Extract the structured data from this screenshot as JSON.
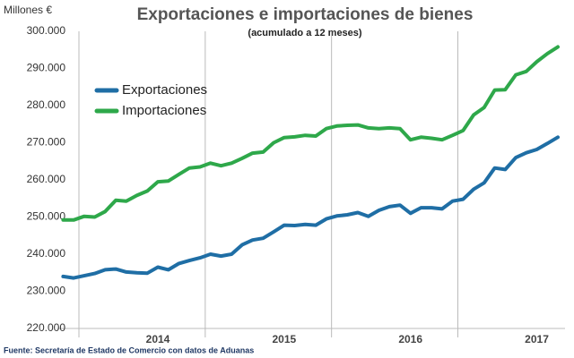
{
  "chart_data": {
    "type": "line",
    "title": "Exportaciones e importaciones de bienes",
    "subtitle": "(acumulado a 12 meses)",
    "y_axis_label": "Millones €",
    "source": "Fuente: Secretaría de Estado de Comercio con datos de Aduanas",
    "categories": [
      null,
      null,
      null,
      null,
      null,
      null,
      null,
      null,
      "2014",
      null,
      null,
      null,
      null,
      null,
      null,
      null,
      null,
      null,
      null,
      null,
      "2015",
      null,
      null,
      null,
      null,
      null,
      null,
      null,
      null,
      null,
      null,
      null,
      "2016",
      null,
      null,
      null,
      null,
      null,
      null,
      null,
      null,
      null,
      null,
      null,
      "2017",
      null,
      null,
      null
    ],
    "series": [
      {
        "name": "Exportaciones",
        "color": "#1f6ea5",
        "values": [
          234000,
          233600,
          234200,
          234800,
          235800,
          236000,
          235200,
          235000,
          234900,
          236500,
          235800,
          237500,
          238300,
          239000,
          240000,
          239500,
          240000,
          242500,
          243800,
          244300,
          246000,
          247800,
          247700,
          248000,
          247800,
          249500,
          250300,
          250600,
          251200,
          250200,
          251800,
          252800,
          253200,
          251000,
          252500,
          252500,
          252200,
          254300,
          254800,
          257500,
          259200,
          263200,
          262800,
          266000,
          267300,
          268200,
          269800,
          271500
        ]
      },
      {
        "name": "Importaciones",
        "color": "#2ea84a",
        "values": [
          249200,
          249200,
          250200,
          250000,
          251500,
          254500,
          254300,
          255800,
          257000,
          259500,
          259700,
          261500,
          263200,
          263500,
          264500,
          263800,
          264500,
          265800,
          267200,
          267500,
          270000,
          271400,
          271600,
          272000,
          271800,
          273800,
          274500,
          274700,
          274800,
          274000,
          273800,
          274000,
          273800,
          270800,
          271500,
          271200,
          270800,
          272000,
          273300,
          277500,
          279500,
          284200,
          284300,
          288300,
          289200,
          291800,
          294000,
          295800
        ]
      }
    ],
    "ylim": [
      220000,
      300000
    ],
    "yticks": [
      {
        "value": 220000,
        "label": "220.000"
      },
      {
        "value": 230000,
        "label": "230.000"
      },
      {
        "value": 240000,
        "label": "240.000"
      },
      {
        "value": 250000,
        "label": "250.000"
      },
      {
        "value": 260000,
        "label": "260.000"
      },
      {
        "value": 270000,
        "label": "270.000"
      },
      {
        "value": 280000,
        "label": "280.000"
      },
      {
        "value": 290000,
        "label": "290.000"
      },
      {
        "value": 300000,
        "label": "300.000"
      }
    ],
    "legend": "top-left"
  }
}
